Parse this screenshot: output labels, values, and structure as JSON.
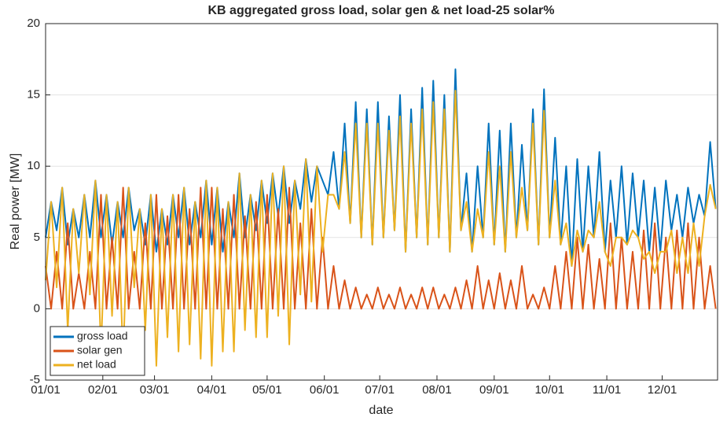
{
  "chart_data": {
    "type": "line",
    "title": "KB aggregated gross load, solar gen & net load-25 solar%",
    "xlabel": "date",
    "ylabel": "Real power [MW]",
    "x": [
      0,
      3,
      6,
      9,
      12,
      15,
      18,
      21,
      24,
      27,
      30,
      33,
      36,
      39,
      42,
      45,
      48,
      51,
      54,
      57,
      60,
      63,
      66,
      69,
      72,
      75,
      78,
      81,
      84,
      87,
      90,
      93,
      96,
      99,
      102,
      105,
      108,
      111,
      114,
      117,
      120,
      123,
      126,
      129,
      132,
      135,
      138,
      141,
      144,
      147,
      150,
      153,
      156,
      159,
      162,
      165,
      168,
      171,
      174,
      177,
      180,
      183,
      186,
      189,
      192,
      195,
      198,
      201,
      204,
      207,
      210,
      213,
      216,
      219,
      222,
      225,
      228,
      231,
      234,
      237,
      240,
      243,
      246,
      249,
      252,
      255,
      258,
      261,
      264,
      267,
      270,
      273,
      276,
      279,
      282,
      285,
      288,
      291,
      294,
      297,
      300,
      303,
      306,
      309,
      312,
      315,
      318,
      321,
      324,
      327,
      330,
      333,
      336,
      339,
      342,
      345,
      348,
      351,
      354,
      357,
      360,
      363
    ],
    "series": [
      {
        "name": "gross load",
        "color": "#0072BD",
        "values": [
          5,
          7.5,
          5.5,
          8.5,
          4.5,
          7,
          5,
          8,
          5,
          9,
          5,
          8,
          4.5,
          7.5,
          5,
          8.5,
          5.5,
          7,
          4.5,
          8,
          4,
          7,
          4.5,
          8,
          5,
          8.5,
          4.5,
          7.5,
          5,
          9,
          4.5,
          8.5,
          4,
          7.5,
          5,
          9.5,
          5,
          8,
          5.5,
          9,
          6,
          9.5,
          6.5,
          10,
          6,
          9,
          7,
          10.5,
          7.5,
          10,
          9,
          8,
          11,
          7,
          13,
          6,
          14.5,
          5,
          14,
          4.5,
          14.5,
          5,
          13.5,
          5.5,
          15,
          4,
          14,
          5,
          15.5,
          4.5,
          16,
          5,
          15,
          4,
          16.8,
          5.5,
          9.5,
          4,
          10,
          5,
          13,
          4.5,
          12.5,
          4,
          13,
          5,
          11.5,
          5.5,
          14,
          4.5,
          15.4,
          5,
          12,
          4.5,
          10,
          3,
          10.5,
          4,
          10,
          5,
          11,
          4,
          9,
          5,
          10,
          4.5,
          9.5,
          5,
          9,
          4,
          8.5,
          4,
          9,
          5.5,
          8,
          5,
          8.5,
          6,
          8,
          6.5,
          11.7,
          7
        ]
      },
      {
        "name": "solar gen",
        "color": "#D95319",
        "values": [
          3,
          0,
          4,
          0,
          6,
          0,
          2.5,
          0,
          4,
          0,
          8,
          0,
          5,
          0,
          8.5,
          0,
          4,
          0,
          6,
          0,
          8,
          0,
          6.5,
          0,
          8,
          0,
          7,
          0,
          8.5,
          0,
          8.5,
          0,
          7,
          0,
          8,
          0,
          6.5,
          0,
          7.5,
          0,
          8,
          0,
          7,
          0,
          8.5,
          0,
          6,
          0,
          7,
          0,
          5,
          0,
          3,
          0,
          2,
          0,
          1.5,
          0,
          1,
          0,
          1.5,
          0,
          1,
          0,
          1.5,
          0,
          1,
          0,
          1.5,
          0,
          1.5,
          0,
          1,
          0,
          1.5,
          0,
          2,
          0,
          3,
          0,
          2,
          0,
          2.5,
          0,
          2,
          0,
          3,
          0,
          1,
          0,
          1.5,
          0,
          3,
          0,
          4,
          0,
          5,
          0,
          4.5,
          0,
          3.5,
          0,
          6,
          0,
          5,
          0,
          4,
          0,
          5.5,
          0,
          6,
          0,
          5,
          0,
          5.5,
          0,
          6,
          0,
          5,
          0,
          3,
          0
        ]
      },
      {
        "name": "net load",
        "color": "#EDB120",
        "values": [
          2,
          7.5,
          1.5,
          8.5,
          -1.5,
          7,
          2.5,
          8,
          1,
          9,
          -3,
          8,
          -0.5,
          7.5,
          -3.5,
          8.5,
          1.5,
          7,
          -1.5,
          8,
          -4,
          7,
          -2,
          8,
          -3,
          8.5,
          -2.5,
          7.5,
          -3.5,
          9,
          -4,
          8.5,
          -3,
          7.5,
          -3,
          9.5,
          -1.5,
          8,
          -2,
          9,
          -2,
          9.5,
          -0.5,
          10,
          -2.5,
          9,
          1,
          10.5,
          0.5,
          10,
          4,
          8,
          8,
          7,
          11,
          6,
          13,
          5,
          13,
          4.5,
          13,
          5,
          12.5,
          5.5,
          13.5,
          4,
          13,
          5,
          14,
          4.5,
          14.5,
          5,
          14,
          4,
          15.3,
          5.5,
          7.5,
          4,
          7,
          5,
          11,
          4.5,
          10,
          4,
          11,
          5,
          8.5,
          5.5,
          13,
          4.5,
          13.9,
          5,
          9,
          4.5,
          6,
          3,
          5.5,
          4,
          5.5,
          5,
          7.5,
          4,
          3,
          5,
          5,
          4.5,
          5.5,
          5,
          3.5,
          4,
          2.5,
          4,
          4,
          5.5,
          2.5,
          5,
          2.5,
          6,
          3,
          6.5,
          8.7,
          7
        ]
      }
    ],
    "xlim": [
      0,
      364
    ],
    "xticks": [
      {
        "value": 0,
        "label": "01/01"
      },
      {
        "value": 31,
        "label": "02/01"
      },
      {
        "value": 59,
        "label": "03/01"
      },
      {
        "value": 90,
        "label": "04/01"
      },
      {
        "value": 120,
        "label": "05/01"
      },
      {
        "value": 151,
        "label": "06/01"
      },
      {
        "value": 181,
        "label": "07/01"
      },
      {
        "value": 212,
        "label": "08/01"
      },
      {
        "value": 243,
        "label": "09/01"
      },
      {
        "value": 273,
        "label": "10/01"
      },
      {
        "value": 304,
        "label": "11/01"
      },
      {
        "value": 334,
        "label": "12/01"
      }
    ],
    "ylim": [
      -5,
      20
    ],
    "yticks": [
      -5,
      0,
      5,
      10,
      15,
      20
    ],
    "grid": true,
    "legend": "lower-left"
  }
}
